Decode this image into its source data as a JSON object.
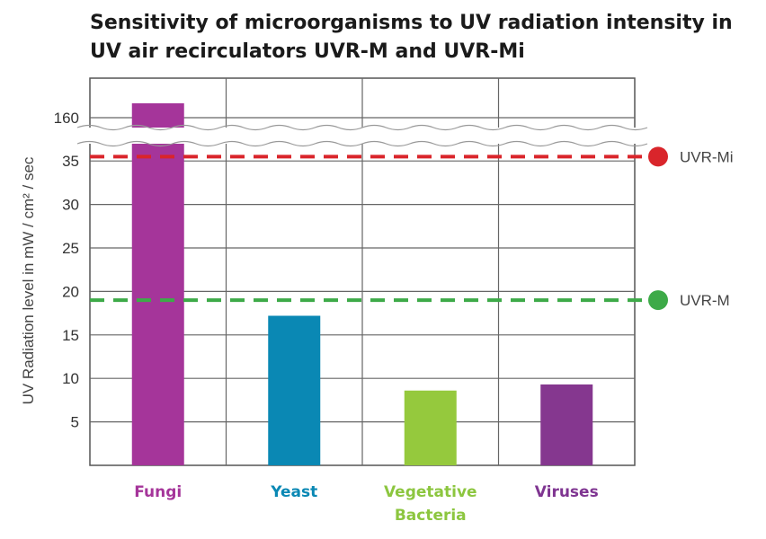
{
  "chart_data": {
    "type": "bar",
    "title": "Sensitivity of microorganisms to UV radiation intensity in UV air recirculators UVR-M and UVR-Mi",
    "title_lines": [
      "Sensitivity of microorganisms to UV radiation intensity in",
      "UV air recirculators UVR-M and UVR-Mi"
    ],
    "ylabel": "UV Radiation level in  mW / cm² / sec",
    "xlabel": "",
    "ylim": [
      0,
      45
    ],
    "axis_break": {
      "below": 35,
      "above": 160
    },
    "y_ticks": [
      5,
      10,
      15,
      20,
      25,
      30,
      35
    ],
    "y_ticks_above_break": [
      160
    ],
    "grid": true,
    "categories": [
      {
        "lines": [
          "Fungi"
        ],
        "color": "#a5359a"
      },
      {
        "lines": [
          "Yeast"
        ],
        "color": "#0a88b4"
      },
      {
        "lines": [
          "Vegetative",
          "Bacteria"
        ],
        "color": "#8cc63f"
      },
      {
        "lines": [
          "Viruses"
        ],
        "color": "#7f3591"
      }
    ],
    "values": [
      165,
      17.2,
      8.6,
      9.3
    ],
    "bar_colors": [
      "#a5359a",
      "#0a88b4",
      "#95c93d",
      "#85378f"
    ],
    "reference_lines": [
      {
        "name": "UVR-Mi",
        "value": 35.5,
        "color": "#d9252b"
      },
      {
        "name": "UVR-M",
        "value": 19,
        "color": "#3daa48"
      }
    ]
  }
}
